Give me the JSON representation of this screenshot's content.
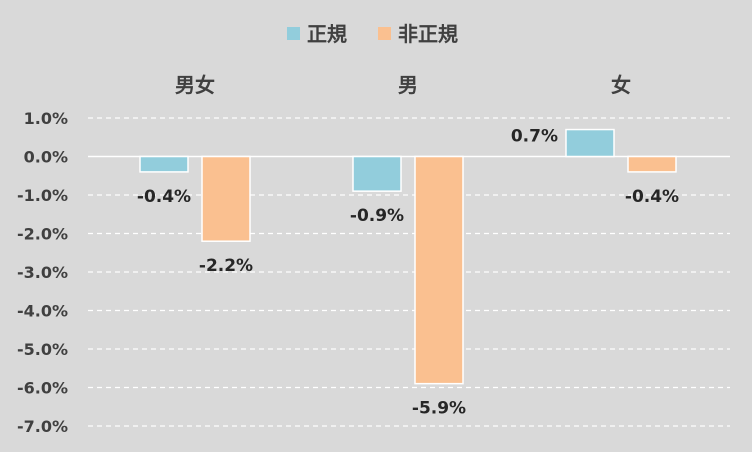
{
  "chart_data": {
    "type": "bar",
    "categories": [
      "男女",
      "男",
      "女"
    ],
    "series": [
      {
        "name": "正規",
        "values": [
          -0.4,
          -0.9,
          0.7
        ],
        "labels": [
          "-0.4%",
          "-0.9%",
          "0.7%"
        ],
        "color": "#92cddc"
      },
      {
        "name": "非正規",
        "values": [
          -2.2,
          -5.9,
          -0.4
        ],
        "labels": [
          "-2.2%",
          "-5.9%",
          "-0.4%"
        ],
        "color": "#fac090"
      }
    ],
    "yticks": [
      1.0,
      0.0,
      -1.0,
      -2.0,
      -3.0,
      -4.0,
      -5.0,
      -6.0,
      -7.0
    ],
    "ytick_labels": [
      "1.0%",
      "0.0%",
      "-1.0%",
      "-2.0%",
      "-3.0%",
      "-4.0%",
      "-5.0%",
      "-6.0%",
      "-7.0%"
    ],
    "ylim": [
      -7.0,
      1.0
    ],
    "grid": true,
    "legend_position": "top-center",
    "category_labels_position": "top"
  }
}
